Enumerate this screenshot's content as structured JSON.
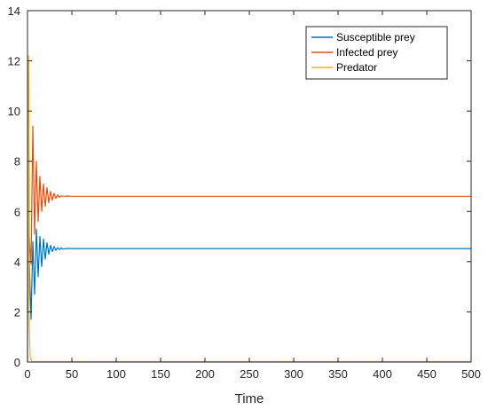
{
  "chart_data": {
    "type": "line",
    "title": "",
    "xlabel": "Time",
    "ylabel": "",
    "xlim": [
      0,
      500
    ],
    "ylim": [
      0,
      14
    ],
    "xticks": [
      0,
      50,
      100,
      150,
      200,
      250,
      300,
      350,
      400,
      450,
      500
    ],
    "yticks": [
      0,
      2,
      4,
      6,
      8,
      10,
      12,
      14
    ],
    "grid": false,
    "legend_position": "top-right",
    "series": [
      {
        "name": "Susceptible prey",
        "color": "#0072BD",
        "x": [
          0,
          1,
          2,
          4,
          6,
          8,
          10,
          12,
          14,
          16,
          18,
          20,
          22,
          24,
          26,
          28,
          30,
          32,
          34,
          36,
          38,
          40,
          45,
          50,
          100,
          500
        ],
        "y": [
          2.0,
          12.0,
          4.0,
          1.7,
          4.8,
          2.7,
          5.3,
          3.4,
          5.0,
          3.8,
          4.9,
          4.1,
          4.75,
          4.3,
          4.65,
          4.4,
          4.6,
          4.45,
          4.56,
          4.48,
          4.55,
          4.5,
          4.53,
          4.52,
          4.52,
          4.52
        ]
      },
      {
        "name": "Infected prey",
        "color": "#D95319",
        "x": [
          0,
          1,
          2,
          4,
          6,
          8,
          10,
          12,
          14,
          16,
          18,
          20,
          22,
          24,
          26,
          28,
          30,
          32,
          34,
          36,
          38,
          40,
          45,
          50,
          100,
          500
        ],
        "y": [
          0.0,
          12.1,
          5.0,
          3.9,
          9.4,
          5.1,
          8.0,
          5.6,
          7.4,
          6.0,
          7.1,
          6.2,
          6.95,
          6.35,
          6.8,
          6.45,
          6.72,
          6.52,
          6.66,
          6.56,
          6.62,
          6.6,
          6.61,
          6.6,
          6.6,
          6.6
        ]
      },
      {
        "name": "Predator",
        "color": "#EDB120",
        "x": [
          0,
          1,
          2,
          3,
          5,
          500
        ],
        "y": [
          2.0,
          12.2,
          1.5,
          0.2,
          0.02,
          0.02
        ]
      }
    ]
  }
}
